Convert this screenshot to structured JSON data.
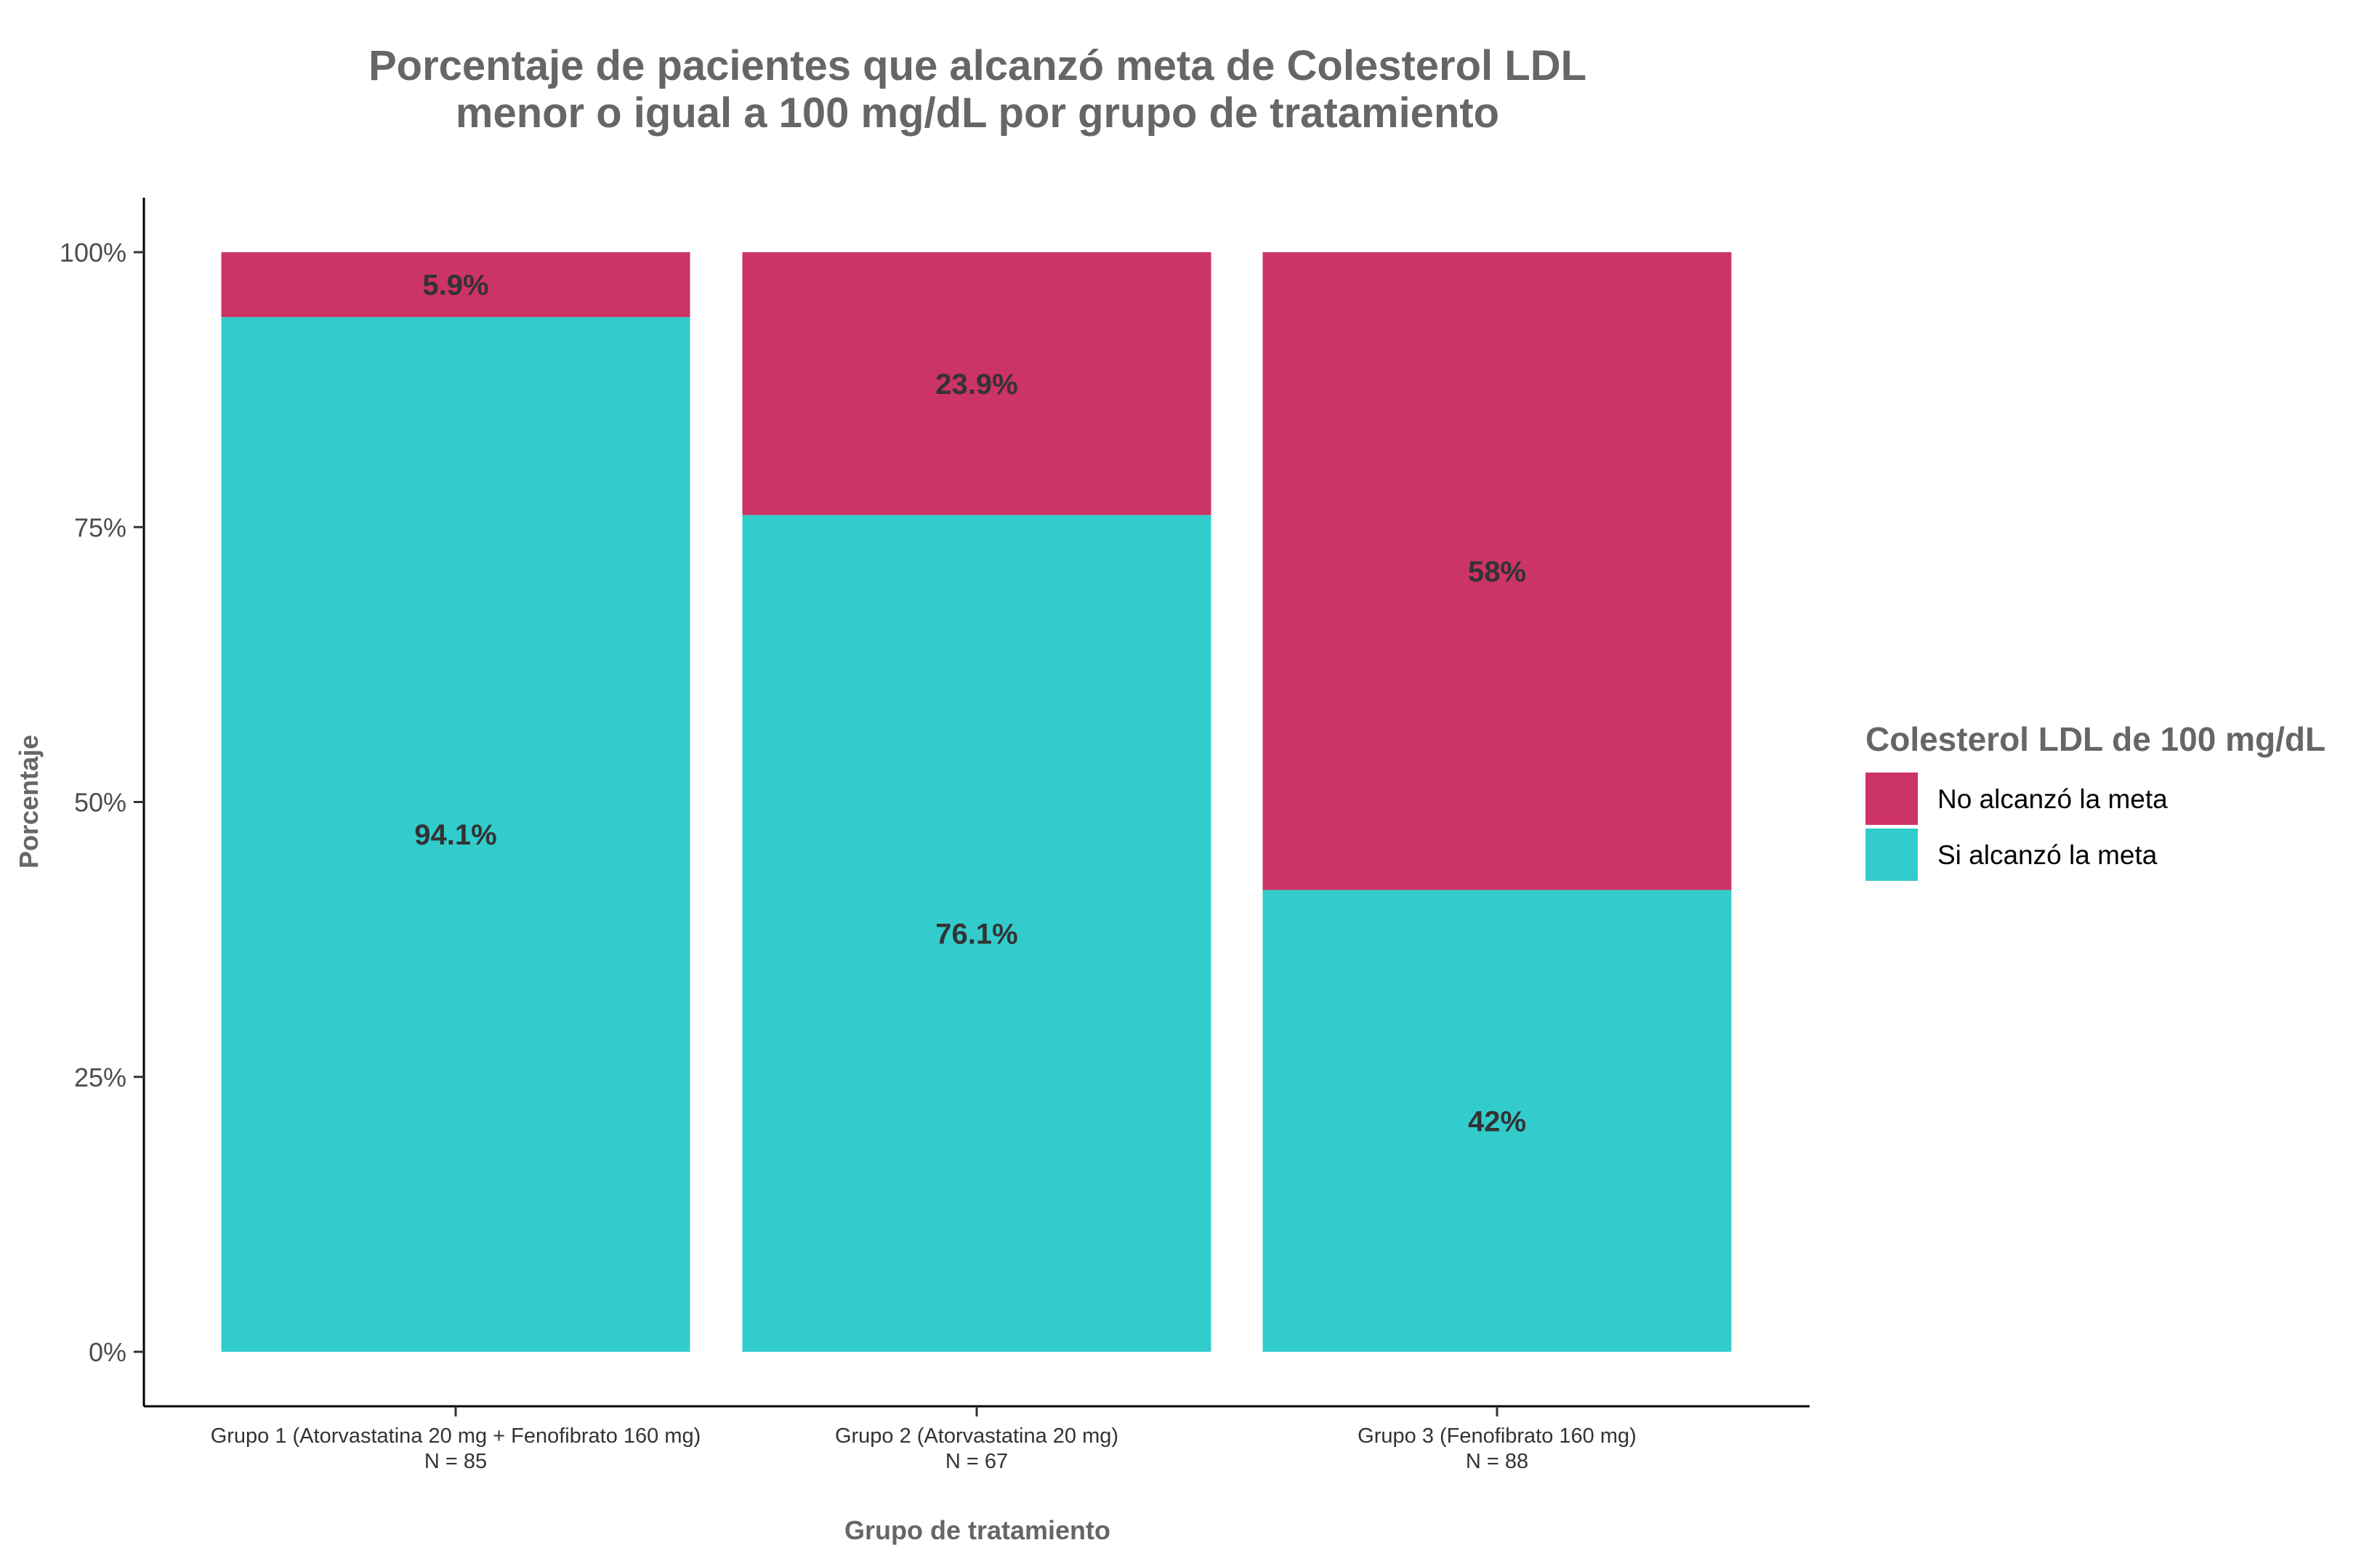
{
  "chart_data": {
    "type": "bar",
    "stacked": true,
    "title_lines": [
      "Porcentaje de pacientes que alcanzó meta de Colesterol LDL",
      "menor o igual a 100 mg/dL por grupo de tratamiento"
    ],
    "xlabel": "Grupo de tratamiento",
    "ylabel": "Porcentaje",
    "ylim": [
      0,
      100
    ],
    "y_ticks": [
      {
        "value": 0,
        "label": "0%"
      },
      {
        "value": 25,
        "label": "25%"
      },
      {
        "value": 50,
        "label": "50%"
      },
      {
        "value": 75,
        "label": "75%"
      },
      {
        "value": 100,
        "label": "100%"
      }
    ],
    "categories": [
      {
        "name": "Grupo 1 (Atorvastatina 20 mg + Fenofibrato 160 mg)",
        "n": "N = 85"
      },
      {
        "name": "Grupo 2 (Atorvastatina 20 mg)",
        "n": "N = 67"
      },
      {
        "name": "Grupo 3 (Fenofibrato 160 mg)",
        "n": "N = 88"
      }
    ],
    "series": [
      {
        "name": "Si alcanzó la meta",
        "color": "#33CCCC",
        "values": [
          94.1,
          76.1,
          42
        ],
        "labels": [
          "94.1%",
          "76.1%",
          "42%"
        ]
      },
      {
        "name": "No alcanzó la meta",
        "color": "#CC3366",
        "values": [
          5.9,
          23.9,
          58
        ],
        "labels": [
          "5.9%",
          "23.9%",
          "58%"
        ]
      }
    ],
    "legend": {
      "title": "Colesterol LDL de 100 mg/dL",
      "position": "right",
      "order": [
        "No alcanzó la meta",
        "Si alcanzó la meta"
      ]
    },
    "grid": false
  }
}
